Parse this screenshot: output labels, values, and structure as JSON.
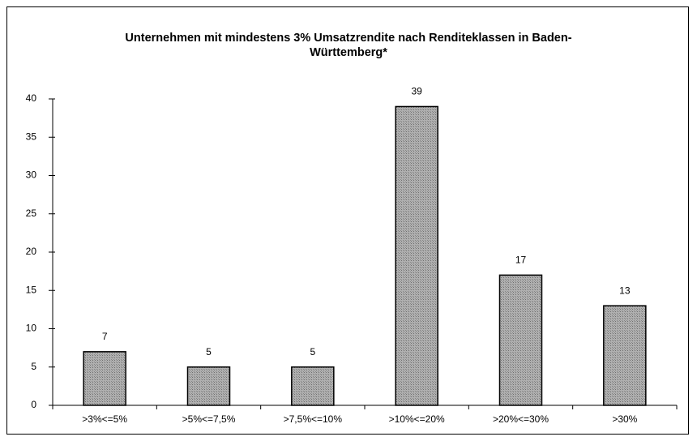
{
  "chart_data": {
    "type": "bar",
    "title": "Unternehmen mit mindestens 3% Umsatzrendite nach Renditeklassen in Baden-Württemberg*",
    "categories": [
      ">3%<=5%",
      ">5%<=7,5%",
      ">7,5%<=10%",
      ">10%<=20%",
      ">20%<=30%",
      ">30%"
    ],
    "values": [
      7,
      5,
      5,
      39,
      17,
      13
    ],
    "color": "#a0a0a0",
    "ylim": [
      0,
      40
    ],
    "yticks": [
      0,
      5,
      10,
      15,
      20,
      25,
      30,
      35,
      40
    ],
    "grid": false
  }
}
